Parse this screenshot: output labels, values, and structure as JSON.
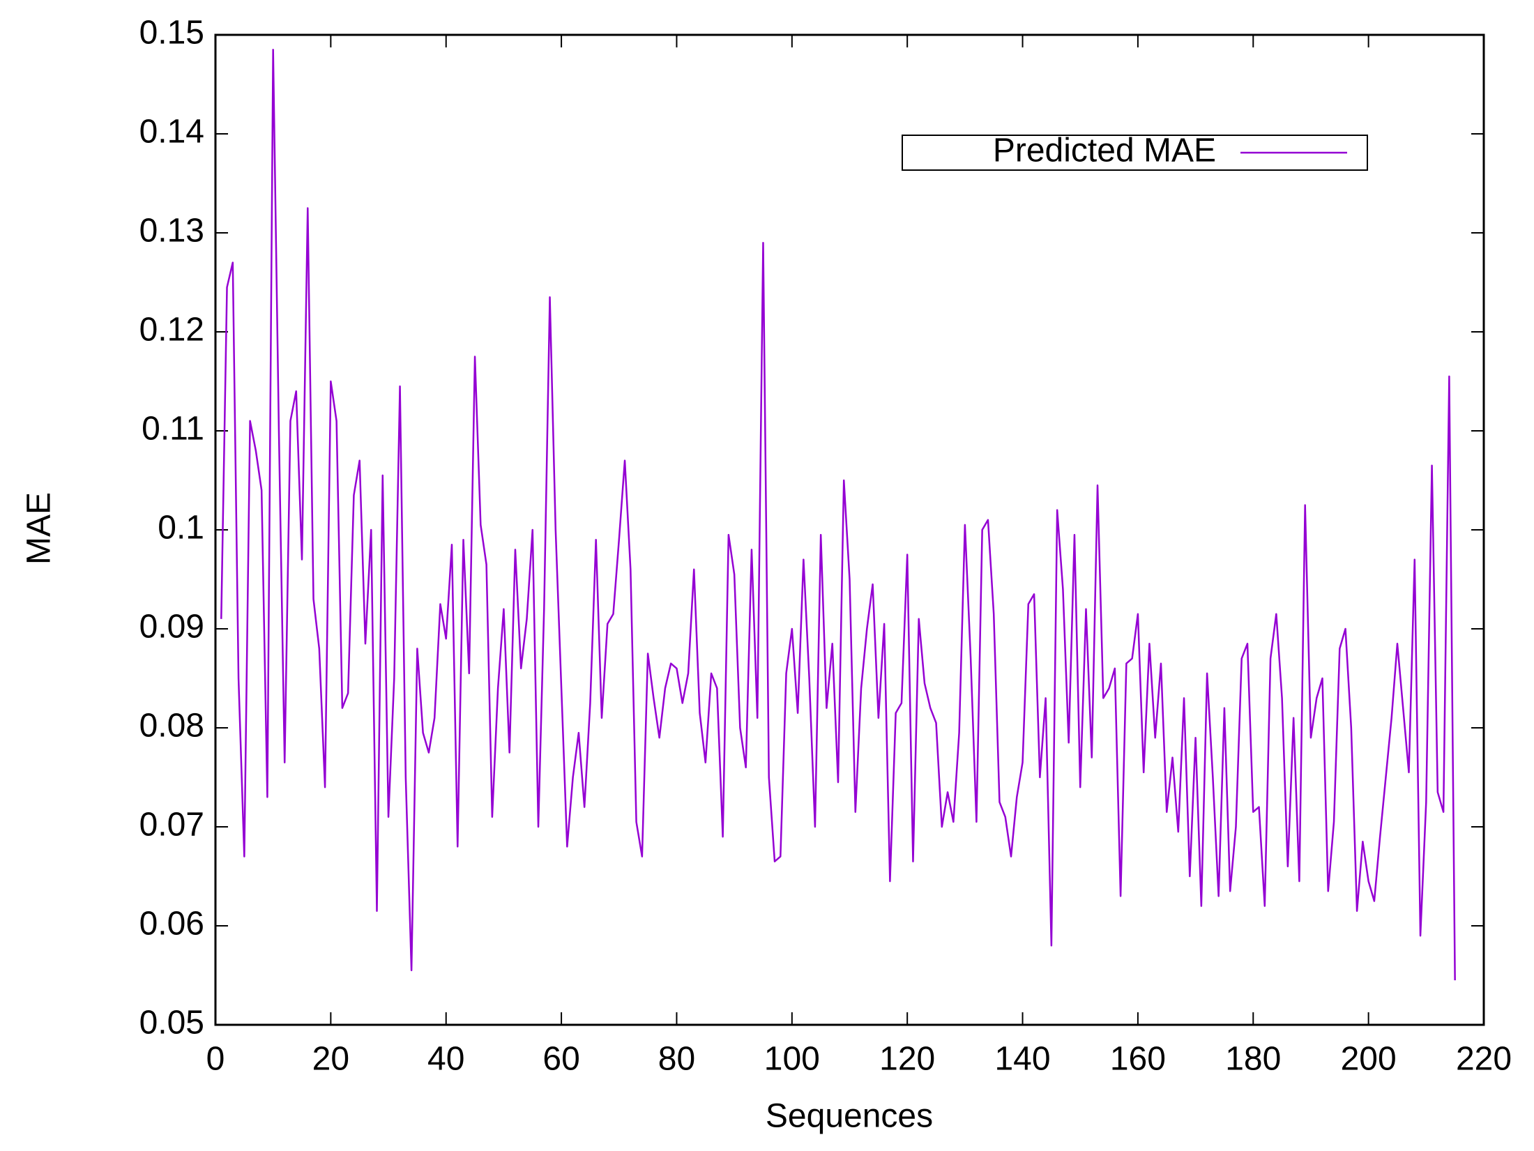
{
  "chart_data": {
    "type": "line",
    "xlabel": "Sequences",
    "ylabel": "MAE",
    "x": [
      1,
      2,
      3,
      4,
      5,
      6,
      7,
      8,
      9,
      10,
      11,
      12,
      13,
      14,
      15,
      16,
      17,
      18,
      19,
      20,
      21,
      22,
      23,
      24,
      25,
      26,
      27,
      28,
      29,
      30,
      31,
      32,
      33,
      34,
      35,
      36,
      37,
      38,
      39,
      40,
      41,
      42,
      43,
      44,
      45,
      46,
      47,
      48,
      49,
      50,
      51,
      52,
      53,
      54,
      55,
      56,
      57,
      58,
      59,
      60,
      61,
      62,
      63,
      64,
      65,
      66,
      67,
      68,
      69,
      70,
      71,
      72,
      73,
      74,
      75,
      76,
      77,
      78,
      79,
      80,
      81,
      82,
      83,
      84,
      85,
      86,
      87,
      88,
      89,
      90,
      91,
      92,
      93,
      94,
      95,
      96,
      97,
      98,
      99,
      100,
      101,
      102,
      103,
      104,
      105,
      106,
      107,
      108,
      109,
      110,
      111,
      112,
      113,
      114,
      115,
      116,
      117,
      118,
      119,
      120,
      121,
      122,
      123,
      124,
      125,
      126,
      127,
      128,
      129,
      130,
      131,
      132,
      133,
      134,
      135,
      136,
      137,
      138,
      139,
      140,
      141,
      142,
      143,
      144,
      145,
      146,
      147,
      148,
      149,
      150,
      151,
      152,
      153,
      154,
      155,
      156,
      157,
      158,
      159,
      160,
      161,
      162,
      163,
      164,
      165,
      166,
      167,
      168,
      169,
      170,
      171,
      172,
      173,
      174,
      175,
      176,
      177,
      178,
      179,
      180,
      181,
      182,
      183,
      184,
      185,
      186,
      187,
      188,
      189,
      190,
      191,
      192,
      193,
      194,
      195,
      196,
      197,
      198,
      199,
      200,
      201,
      202,
      203,
      204,
      205,
      206,
      207,
      208,
      209,
      210,
      211,
      212,
      213,
      214,
      215
    ],
    "series": [
      {
        "name": "Predicted MAE",
        "color": "#9400d3",
        "values": [
          0.091,
          0.1245,
          0.127,
          0.085,
          0.067,
          0.111,
          0.108,
          0.104,
          0.073,
          0.1485,
          0.11,
          0.0765,
          0.111,
          0.114,
          0.097,
          0.1325,
          0.093,
          0.088,
          0.074,
          0.115,
          0.111,
          0.082,
          0.0835,
          0.1035,
          0.107,
          0.0885,
          0.1,
          0.0615,
          0.1055,
          0.071,
          0.085,
          0.1145,
          0.075,
          0.0555,
          0.088,
          0.0795,
          0.0775,
          0.081,
          0.0925,
          0.089,
          0.0985,
          0.068,
          0.099,
          0.0855,
          0.1175,
          0.1005,
          0.0965,
          0.071,
          0.084,
          0.092,
          0.0775,
          0.098,
          0.086,
          0.091,
          0.1,
          0.07,
          0.092,
          0.1235,
          0.1,
          0.084,
          0.068,
          0.075,
          0.0795,
          0.072,
          0.0825,
          0.099,
          0.081,
          0.0905,
          0.0915,
          0.099,
          0.107,
          0.096,
          0.0705,
          0.067,
          0.0875,
          0.083,
          0.079,
          0.084,
          0.0865,
          0.086,
          0.0825,
          0.0855,
          0.096,
          0.0815,
          0.0765,
          0.0855,
          0.084,
          0.069,
          0.0995,
          0.0955,
          0.08,
          0.076,
          0.098,
          0.081,
          0.129,
          0.075,
          0.0665,
          0.067,
          0.0855,
          0.09,
          0.0815,
          0.097,
          0.085,
          0.07,
          0.0995,
          0.082,
          0.0885,
          0.0745,
          0.105,
          0.095,
          0.0715,
          0.084,
          0.09,
          0.0945,
          0.081,
          0.0905,
          0.0645,
          0.0815,
          0.0825,
          0.0975,
          0.0665,
          0.091,
          0.0845,
          0.082,
          0.0805,
          0.07,
          0.0735,
          0.0705,
          0.0795,
          0.1005,
          0.087,
          0.0705,
          0.1,
          0.101,
          0.0915,
          0.0725,
          0.071,
          0.067,
          0.073,
          0.0765,
          0.0925,
          0.0935,
          0.075,
          0.083,
          0.058,
          0.102,
          0.094,
          0.0785,
          0.0995,
          0.074,
          0.092,
          0.077,
          0.1045,
          0.083,
          0.084,
          0.086,
          0.063,
          0.0865,
          0.087,
          0.0915,
          0.0755,
          0.0885,
          0.079,
          0.0865,
          0.0715,
          0.077,
          0.0695,
          0.083,
          0.065,
          0.079,
          0.062,
          0.0855,
          0.075,
          0.063,
          0.082,
          0.0635,
          0.07,
          0.087,
          0.0885,
          0.0715,
          0.072,
          0.062,
          0.087,
          0.0915,
          0.083,
          0.066,
          0.081,
          0.0645,
          0.1025,
          0.079,
          0.083,
          0.085,
          0.0635,
          0.0705,
          0.088,
          0.09,
          0.08,
          0.0615,
          0.0685,
          0.0645,
          0.0625,
          0.069,
          0.075,
          0.081,
          0.0885,
          0.082,
          0.0755,
          0.097,
          0.059,
          0.0725,
          0.1065,
          0.0735,
          0.0715,
          0.1155,
          0.0545
        ]
      }
    ],
    "xlim": [
      0,
      220
    ],
    "xticks": [
      0,
      20,
      40,
      60,
      80,
      100,
      120,
      140,
      160,
      180,
      200,
      220
    ],
    "ylim": [
      0.05,
      0.15
    ],
    "yticks": [
      0.05,
      0.06,
      0.07,
      0.08,
      0.09,
      0.1,
      0.11,
      0.12,
      0.13,
      0.14,
      0.15
    ],
    "legend": "top-right"
  }
}
